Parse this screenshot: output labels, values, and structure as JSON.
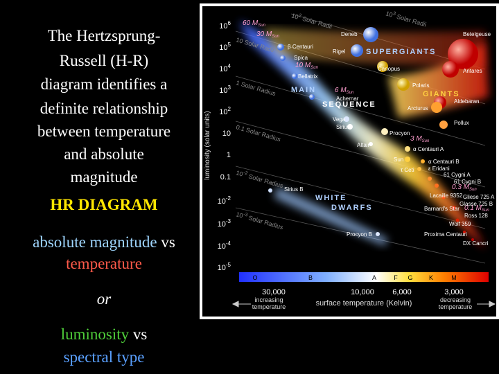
{
  "slide": {
    "intro": [
      "The Hertzsprung-",
      "Russell (H-R)",
      "diagram identifies a",
      "definite  relationship",
      "between temperature",
      "and absolute",
      "magnitude"
    ],
    "heading": "HR DIAGRAM",
    "pair1": {
      "a": "absolute magnitude",
      "vs": "vs",
      "b": "temperature"
    },
    "or": "or",
    "pair2": {
      "a": "luminosity",
      "vs": "vs",
      "b": "spectral type"
    }
  },
  "diagram": {
    "y_axis_label": "luminosity (solar units)",
    "y_ticks": [
      {
        "base": "10",
        "exp": "6"
      },
      {
        "base": "10",
        "exp": "5"
      },
      {
        "base": "10",
        "exp": "4"
      },
      {
        "base": "10",
        "exp": "3"
      },
      {
        "base": "10",
        "exp": "2"
      },
      {
        "base": "10"
      },
      {
        "base": "1"
      },
      {
        "base": "0.1"
      },
      {
        "base": "10",
        "exp": "-2"
      },
      {
        "base": "10",
        "exp": "-3"
      },
      {
        "base": "10",
        "exp": "-4"
      },
      {
        "base": "10",
        "exp": "-5"
      }
    ],
    "spectral_classes": [
      "O",
      "B",
      "A",
      "F",
      "G",
      "K",
      "M"
    ],
    "temperatures": [
      "30,000",
      "10,000",
      "6,000",
      "3,000"
    ],
    "x_left": "increasing temperature",
    "x_label": "surface temperature (Kelvin)",
    "x_right": "decreasing temperature",
    "regions": [
      "SUPERGIANTS",
      "GIANTS",
      "MAIN",
      "SEQUENCE",
      "WHITE",
      "DWARFS"
    ],
    "radii": [
      {
        "pre": "10",
        "exp": "3",
        "text": " Solar Radii"
      },
      {
        "pre": "10",
        "exp": "2",
        "text": " Solar Radii"
      },
      {
        "text": "10 Solar Radii"
      },
      {
        "text": "1 Solar Radius"
      },
      {
        "text": "0.1 Solar Radius"
      },
      {
        "pre": "10",
        "exp": "-2",
        "text": " Solar Radius"
      },
      {
        "pre": "10",
        "exp": "-3",
        "text": " Solar Radius"
      }
    ],
    "masses": [
      {
        "text": "60 M",
        "sub": "Sun"
      },
      {
        "text": "30 M",
        "sub": "Sun"
      },
      {
        "text": "10 M",
        "sub": "Sun"
      },
      {
        "text": "6 M",
        "sub": "Sun"
      },
      {
        "text": "3 M",
        "sub": "Sun"
      },
      {
        "text": "0.3 M",
        "sub": "Sun"
      },
      {
        "text": "0.1 M",
        "sub": "Sun"
      }
    ],
    "stars": [
      "Deneb",
      "Betelgeuse",
      "Rigel",
      "β Centauri",
      "Spica",
      "Bellatrix",
      "Canopus",
      "Antares",
      "Polaris",
      "Achernar",
      "Aldebaran",
      "Arcturus",
      "Vega",
      "Sirius",
      "Pollux",
      "Procyon",
      "Altair",
      "α Centauri A",
      "Sun",
      "τ Ceti",
      "α Centauri B",
      "ε Eridani",
      "61 Cygni A",
      "61 Cygni B",
      "Sirius B",
      "Lacaille 9352",
      "Gliese 725 A",
      "Glasse 725 B",
      "Barnard's Star",
      "Ross 128",
      "Wolf 359",
      "Procyon B",
      "Proxima Centauri",
      "DX Cancri"
    ]
  }
}
